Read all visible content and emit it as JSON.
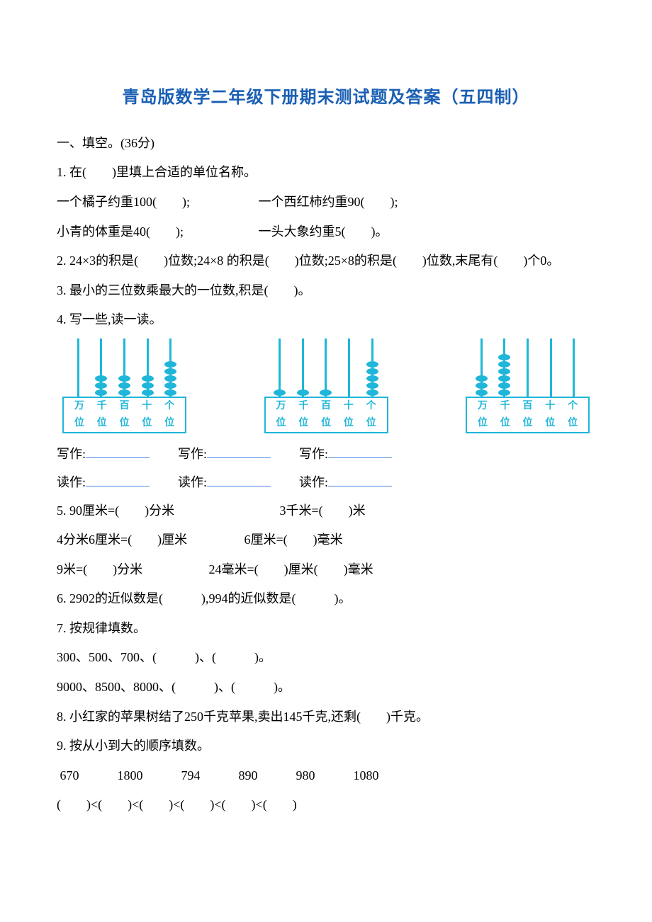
{
  "title": "青岛版数学二年级下册期末测试题及答案（五四制）",
  "section1": {
    "heading": "一、填空。(36分)",
    "q1": {
      "stem": "1. 在(　　)里填上合适的单位名称。",
      "l1a": "一个橘子约重100(　　);",
      "l1b": "一个西红柿约重90(　　);",
      "l2a": "小青的体重是40(　　);",
      "l2b": "一头大象约重5(　　)。"
    },
    "q2": "2. 24×3的积是(　　)位数;24×8 的积是(　　)位数;25×8的积是(　　)位数,末尾有(　　)个0。",
    "q3": "3. 最小的三位数乘最大的一位数,积是(　　)。",
    "q4": {
      "stem": "4. 写一些,读一读。",
      "abacuses": [
        {
          "beads": [
            0,
            3,
            3,
            3,
            5
          ]
        },
        {
          "beads": [
            1,
            1,
            1,
            0,
            5
          ]
        },
        {
          "beads": [
            3,
            6,
            0,
            0,
            0
          ]
        }
      ],
      "place_labels_top": [
        "万",
        "千",
        "百",
        "十",
        "个"
      ],
      "place_labels_bottom": [
        "位",
        "位",
        "位",
        "位",
        "位"
      ],
      "write_label": "写作:",
      "read_label": "读作:"
    },
    "q5": {
      "l1a": "5. 90厘米=(　　)分米",
      "l1b": "3千米=(　　)米",
      "l2a": "4分米6厘米=(　　)厘米",
      "l2b": "6厘米=(　　)毫米",
      "l3a": "9米=(　　)分米",
      "l3b": "24毫米=(　　)厘米(　　)毫米"
    },
    "q6": "6. 2902的近似数是(　　　),994的近似数是(　　　)。",
    "q7": {
      "stem": "7. 按规律填数。",
      "l1": " 300、500、700、(　　　)、(　　　)。",
      "l2": "9000、8500、8000、(　　　)、(　　　)。"
    },
    "q8": "8. 小红家的苹果树结了250千克苹果,卖出145千克,还剩(　　)千克。",
    "q9": {
      "stem": "9. 按从小到大的顺序填数。",
      "nums": " 670　　　1800　　　794　　　890　　　980　　　1080",
      "fill": "(　　)<(　　)<(　　)<(　　)<(　　)<(　　)"
    }
  },
  "colors": {
    "title": "#1a5fb4",
    "abacus": "#1fb6d9",
    "blank_underline": "#4a86e8",
    "text": "#000000",
    "background": "#ffffff"
  }
}
